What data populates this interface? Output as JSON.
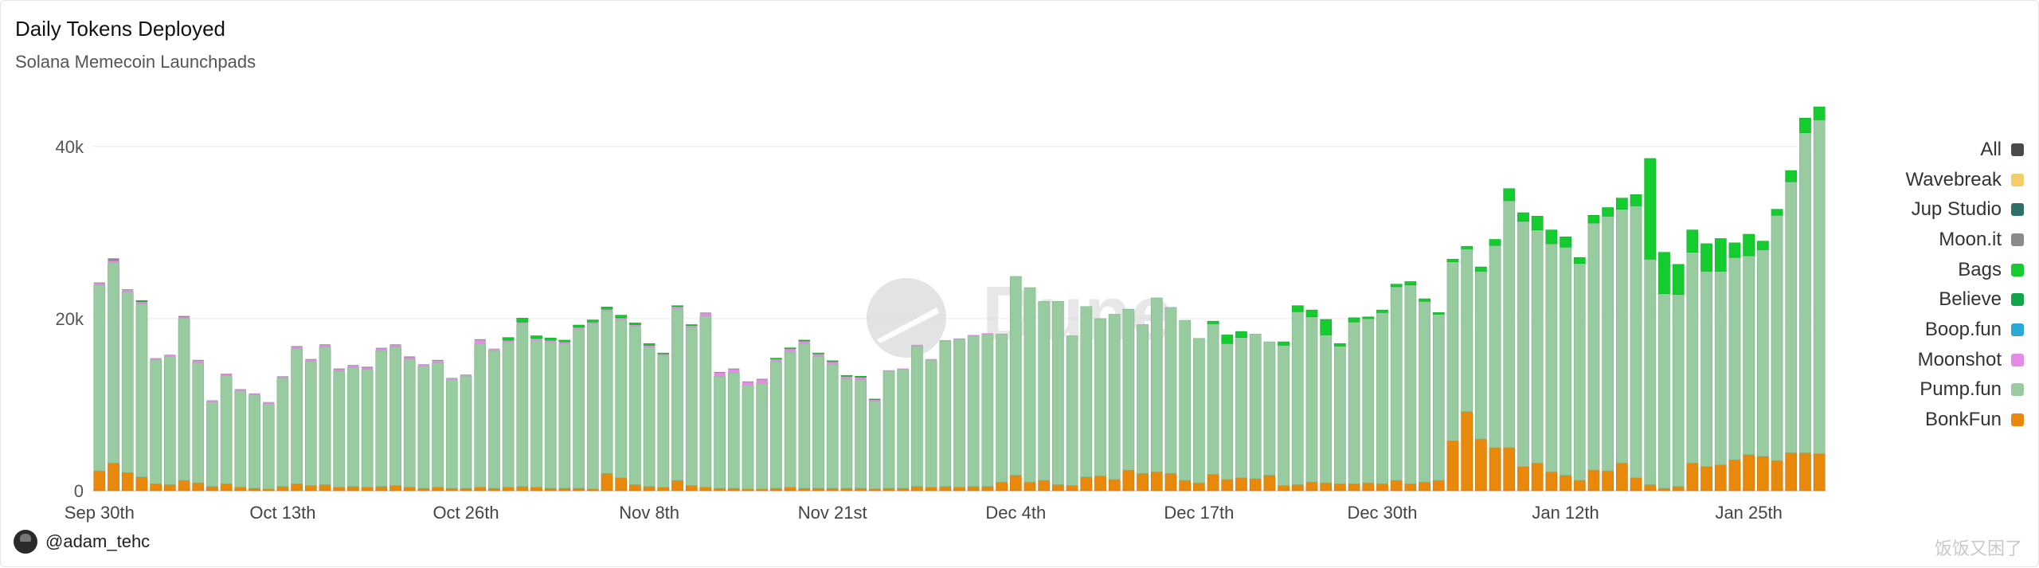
{
  "header": {
    "title": "Daily Tokens Deployed",
    "subtitle": "Solana Memecoin Launchpads"
  },
  "footer": {
    "author": "@adam_tehc",
    "watermark": "饭饭又困了",
    "brand_watermark": "Dune"
  },
  "legend": [
    {
      "name": "All",
      "color": "#4a4a4a",
      "icon": "square-swatch"
    },
    {
      "name": "Wavebreak",
      "color": "#f2cd6a",
      "icon": "square-swatch"
    },
    {
      "name": "Jup Studio",
      "color": "#2e6f6a",
      "icon": "square-swatch"
    },
    {
      "name": "Moon.it",
      "color": "#8a8a8a",
      "icon": "square-swatch"
    },
    {
      "name": "Bags",
      "color": "#14cc2e",
      "icon": "square-swatch"
    },
    {
      "name": "Believe",
      "color": "#12a64a",
      "icon": "square-swatch"
    },
    {
      "name": "Boop.fun",
      "color": "#2aa8d8",
      "icon": "square-swatch"
    },
    {
      "name": "Moonshot",
      "color": "#e58ae6",
      "icon": "square-swatch"
    },
    {
      "name": "Pump.fun",
      "color": "#98cca0",
      "icon": "square-swatch"
    },
    {
      "name": "BonkFun",
      "color": "#e8890b",
      "icon": "square-swatch"
    }
  ],
  "chart_data": {
    "type": "bar",
    "stacked": true,
    "title": "Daily Tokens Deployed",
    "subtitle": "Solana Memecoin Launchpads",
    "ylim": [
      0,
      46000
    ],
    "yticks": [
      0,
      20000,
      40000
    ],
    "ytick_labels": [
      "0",
      "20k",
      "40k"
    ],
    "xtick_labels": [
      "Sep 30th",
      "Oct 13th",
      "Oct 26th",
      "Nov 8th",
      "Nov 21st",
      "Dec 4th",
      "Dec 17th",
      "Dec 30th",
      "Jan 12th",
      "Jan 25th"
    ],
    "xtick_indices": [
      0,
      13,
      26,
      39,
      52,
      65,
      78,
      91,
      104,
      117
    ],
    "grid": true,
    "legend_position": "right",
    "total": [
      24200,
      26800,
      23400,
      22000,
      15400,
      15800,
      20300,
      15200,
      10500,
      13600,
      11800,
      11300,
      10300,
      13300,
      16800,
      15300,
      17000,
      14200,
      14600,
      14400,
      16600,
      17000,
      15600,
      14700,
      15200,
      13100,
      13500,
      17600,
      16500,
      17800,
      20000,
      18000,
      17700,
      17500,
      19200,
      19800,
      21300,
      20400,
      19500,
      17100,
      16000,
      21400,
      19200,
      20700,
      13800,
      14200,
      12700,
      13000,
      15400,
      16600,
      17500,
      16000,
      15100,
      13400,
      13300,
      10600,
      14000,
      14200,
      17000,
      15300,
      17500,
      17700,
      18100,
      18300,
      18200,
      24900,
      23600,
      22000,
      22000,
      18000,
      21400,
      20000,
      20500,
      21100,
      19300,
      22400,
      21300,
      19800,
      17700,
      19700,
      18100,
      18500,
      18200,
      17300,
      17300,
      21500,
      21000,
      19900,
      17100,
      19800,
      20200,
      21000,
      24000,
      24300,
      22300,
      20700,
      26900,
      28400,
      26000,
      29200,
      35100,
      32300,
      31900,
      30300,
      29500,
      27100,
      32000,
      32900,
      34000,
      34400,
      38600,
      27700,
      26300,
      30300,
      28700,
      29300,
      28800,
      29600,
      29000,
      33600,
      37200,
      43200,
      44700
    ],
    "series": [
      {
        "name": "BonkFun",
        "color": "#e8890b",
        "values": [
          2300,
          3200,
          2100,
          1600,
          800,
          700,
          1200,
          900,
          500,
          800,
          400,
          300,
          200,
          500,
          800,
          600,
          700,
          400,
          500,
          400,
          500,
          600,
          400,
          300,
          400,
          300,
          300,
          400,
          300,
          400,
          500,
          400,
          300,
          300,
          300,
          200,
          2000,
          1500,
          700,
          500,
          400,
          1200,
          600,
          400,
          300,
          300,
          200,
          200,
          300,
          400,
          300,
          300,
          300,
          300,
          300,
          200,
          300,
          300,
          500,
          400,
          500,
          400,
          500,
          500,
          1000,
          1800,
          1000,
          1200,
          700,
          600,
          1600,
          1700,
          1300,
          2400,
          2000,
          2200,
          2000,
          1200,
          900,
          1900,
          1300,
          1500,
          1400,
          1800,
          600,
          700,
          1000,
          900,
          800,
          800,
          900,
          800,
          1200,
          800,
          1000,
          1200,
          5800,
          9200,
          6000,
          5000,
          5000,
          2800,
          3200,
          2200,
          1800,
          1200,
          2400,
          2300,
          3200,
          1500,
          700,
          300,
          500,
          3200,
          2800,
          3000,
          3600,
          4200,
          4000,
          3500,
          4400,
          4400,
          4300
        ]
      },
      {
        "name": "Pump.fun",
        "color": "#98cca0",
        "values": [
          21600,
          23300,
          21000,
          20100,
          14400,
          14900,
          18800,
          14000,
          9800,
          12600,
          11200,
          10800,
          9900,
          12600,
          15700,
          14400,
          16000,
          13500,
          13800,
          13700,
          15800,
          16100,
          14900,
          14200,
          14500,
          12600,
          13000,
          16700,
          16000,
          16900,
          18900,
          17100,
          17000,
          16800,
          18500,
          19200,
          18900,
          18400,
          18400,
          16200,
          15300,
          20000,
          18400,
          19900,
          13000,
          13400,
          12100,
          12300,
          14700,
          15800,
          16800,
          15300,
          14400,
          12700,
          12600,
          10200,
          13600,
          13800,
          16300,
          14800,
          16900,
          17200,
          17500,
          17700,
          17200,
          23100,
          22600,
          20800,
          21300,
          17400,
          19800,
          18300,
          19200,
          18700,
          17300,
          20200,
          19300,
          18600,
          16800,
          17500,
          15800,
          16300,
          16800,
          15500,
          16300,
          20100,
          19200,
          17200,
          16000,
          18800,
          19100,
          19900,
          22500,
          23100,
          21000,
          19300,
          20800,
          18900,
          19500,
          23500,
          28700,
          28500,
          27100,
          26500,
          26500,
          25200,
          28700,
          29600,
          29500,
          31600,
          26200,
          22600,
          22300,
          24500,
          22700,
          22500,
          23500,
          23100,
          24000,
          28500,
          31500,
          37200,
          38800
        ]
      },
      {
        "name": "Moonshot",
        "color": "#e58ae6",
        "values": [
          200,
          200,
          200,
          200,
          150,
          150,
          150,
          200,
          150,
          150,
          150,
          150,
          150,
          150,
          200,
          200,
          200,
          200,
          200,
          200,
          200,
          200,
          200,
          150,
          200,
          150,
          150,
          400,
          150,
          150,
          150,
          150,
          150,
          150,
          150,
          150,
          150,
          150,
          150,
          150,
          150,
          150,
          150,
          300,
          400,
          400,
          300,
          400,
          250,
          250,
          250,
          250,
          250,
          250,
          250,
          150,
          100,
          100,
          150,
          100,
          100,
          100,
          100,
          100,
          0,
          0,
          0,
          0,
          0,
          0,
          0,
          0,
          0,
          0,
          0,
          0,
          0,
          0,
          0,
          0,
          0,
          0,
          0,
          0,
          0,
          0,
          0,
          0,
          0,
          0,
          0,
          0,
          0,
          0,
          0,
          0,
          0,
          0,
          0,
          0,
          0,
          0,
          0,
          0,
          0,
          0,
          0,
          0,
          0,
          0,
          0,
          0,
          0,
          0,
          0,
          0,
          0,
          0,
          0,
          0,
          0,
          0,
          0
        ]
      },
      {
        "name": "Believe",
        "color": "#12a64a",
        "values": [
          0,
          0,
          0,
          0,
          0,
          0,
          0,
          0,
          0,
          0,
          0,
          0,
          0,
          0,
          0,
          0,
          0,
          0,
          0,
          0,
          0,
          0,
          0,
          0,
          0,
          0,
          0,
          0,
          0,
          0,
          0,
          0,
          0,
          0,
          0,
          0,
          0,
          0,
          0,
          0,
          0,
          0,
          0,
          0,
          0,
          0,
          0,
          0,
          0,
          0,
          0,
          0,
          0,
          0,
          0,
          0,
          0,
          0,
          0,
          0,
          0,
          0,
          0,
          0,
          0,
          0,
          0,
          0,
          0,
          0,
          0,
          0,
          0,
          0,
          0,
          0,
          0,
          0,
          0,
          0,
          0,
          0,
          0,
          0,
          0,
          0,
          0,
          0,
          0,
          0,
          0,
          0,
          0,
          0,
          0,
          0,
          0,
          0,
          0,
          0,
          0,
          0,
          0,
          0,
          0,
          0,
          0,
          0,
          0,
          0,
          0,
          0,
          0,
          0,
          0,
          0,
          0,
          0,
          0,
          0,
          0,
          0,
          0
        ]
      },
      {
        "name": "Moon.it",
        "color": "#8a8a8a",
        "values": [
          100,
          300,
          100,
          100,
          50,
          50,
          150,
          100,
          50,
          50,
          50,
          50,
          50,
          50,
          100,
          100,
          100,
          100,
          100,
          100,
          100,
          100,
          100,
          50,
          100,
          50,
          50,
          100,
          50,
          50,
          50,
          50,
          50,
          50,
          50,
          50,
          50,
          50,
          50,
          50,
          50,
          50,
          50,
          100,
          100,
          100,
          100,
          100,
          50,
          50,
          50,
          50,
          50,
          50,
          50,
          50,
          0,
          0,
          0,
          0,
          0,
          0,
          0,
          0,
          0,
          0,
          0,
          0,
          0,
          0,
          0,
          0,
          0,
          0,
          0,
          0,
          0,
          0,
          0,
          0,
          0,
          0,
          0,
          0,
          0,
          0,
          0,
          0,
          0,
          0,
          0,
          0,
          0,
          0,
          0,
          0,
          0,
          0,
          0,
          0,
          0,
          0,
          0,
          0,
          0,
          0,
          0,
          0,
          0,
          0,
          0,
          0,
          0,
          0,
          0,
          0,
          0,
          0,
          0,
          0,
          0,
          0,
          0
        ]
      },
      {
        "name": "Bags",
        "color": "#14cc2e",
        "values": [
          0,
          0,
          0,
          100,
          0,
          0,
          0,
          0,
          0,
          0,
          0,
          0,
          0,
          0,
          0,
          0,
          0,
          0,
          0,
          0,
          0,
          0,
          0,
          0,
          0,
          0,
          0,
          0,
          0,
          300,
          450,
          300,
          250,
          200,
          250,
          250,
          250,
          300,
          200,
          200,
          100,
          100,
          100,
          0,
          0,
          0,
          0,
          0,
          100,
          100,
          100,
          100,
          100,
          100,
          100,
          50,
          0,
          0,
          0,
          0,
          0,
          0,
          0,
          0,
          0,
          0,
          0,
          0,
          0,
          0,
          0,
          0,
          0,
          0,
          0,
          0,
          0,
          0,
          0,
          300,
          1000,
          700,
          0,
          0,
          400,
          700,
          800,
          1800,
          300,
          500,
          200,
          300,
          300,
          400,
          300,
          200,
          300,
          300,
          500,
          700,
          1400,
          1000,
          1600,
          1600,
          1200,
          700,
          900,
          1000,
          1300,
          1300,
          11700,
          4800,
          3500,
          2600,
          3200,
          3800,
          1700,
          2500,
          1000,
          700,
          1300,
          1700,
          1500
        ]
      }
    ]
  }
}
